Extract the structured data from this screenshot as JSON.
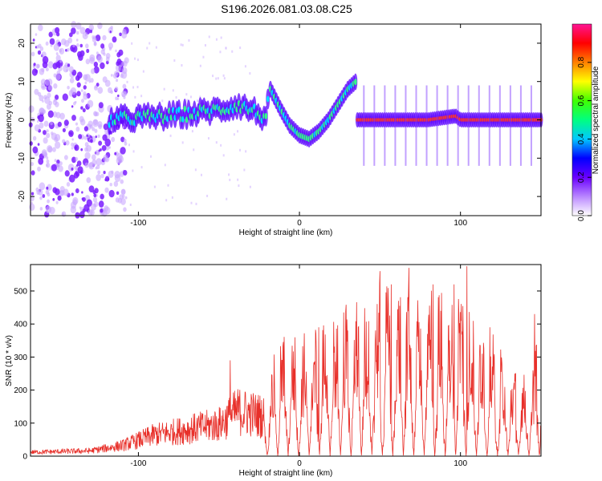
{
  "title": "S196.2026.081.03.08.C25",
  "chart_data": [
    {
      "type": "heatmap",
      "xlabel": "Height of straight line (km)",
      "ylabel": "Frequency (Hz)",
      "xlim": [
        -167,
        150
      ],
      "ylim": [
        -25,
        25
      ],
      "xticks": [
        -100,
        0,
        100
      ],
      "yticks": [
        -20,
        -10,
        0,
        10,
        20
      ],
      "colorbar": {
        "label": "Normalized spectral amplitude",
        "range": [
          0,
          1
        ],
        "ticks": [
          0,
          0.2,
          0.4,
          0.6,
          0.8
        ]
      },
      "trace": {
        "x": [
          -118,
          -100,
          -80,
          -60,
          -45,
          -38,
          -33,
          -29,
          -25,
          -21,
          -18,
          -12,
          -6,
          0,
          6,
          12,
          18,
          24,
          30,
          35,
          36,
          60,
          80,
          97,
          100,
          150
        ],
        "freq": [
          0,
          0.5,
          1,
          2,
          3,
          4,
          3,
          2.5,
          1.5,
          0.5,
          8,
          3,
          -1.5,
          -4,
          -5,
          -3,
          0,
          4,
          8,
          10,
          0,
          0,
          0,
          1,
          0,
          0
        ]
      }
    },
    {
      "type": "line",
      "xlabel": "Height of straight line (km)",
      "ylabel": "SNR (10 * v/v)",
      "xlim": [
        -167,
        150
      ],
      "ylim": [
        0,
        580
      ],
      "xticks": [
        -100,
        0,
        100
      ],
      "yticks": [
        0,
        100,
        200,
        300,
        400,
        500
      ],
      "color": "#e8302a",
      "envelope": {
        "x": [
          -167,
          -130,
          -110,
          -90,
          -70,
          -50,
          -38,
          -30,
          -22,
          -15,
          -10,
          0,
          10,
          20,
          30,
          40,
          50,
          60,
          70,
          80,
          90,
          100,
          110,
          120,
          130,
          140,
          150
        ],
        "snr": [
          15,
          20,
          40,
          80,
          100,
          120,
          170,
          160,
          150,
          260,
          300,
          300,
          320,
          340,
          380,
          400,
          420,
          420,
          400,
          420,
          400,
          430,
          380,
          300,
          220,
          200,
          320
        ]
      },
      "spikes": [
        {
          "x": -43,
          "snr": 290
        },
        {
          "x": 12,
          "snr": 390
        },
        {
          "x": 50,
          "snr": 560
        },
        {
          "x": 57,
          "snr": 520
        },
        {
          "x": 68,
          "snr": 570
        },
        {
          "x": 83,
          "snr": 520
        },
        {
          "x": 96,
          "snr": 520
        },
        {
          "x": 104,
          "snr": 575
        },
        {
          "x": 146,
          "snr": 430
        }
      ],
      "null_interval_km": 6.5,
      "null_start_km": -20
    }
  ]
}
